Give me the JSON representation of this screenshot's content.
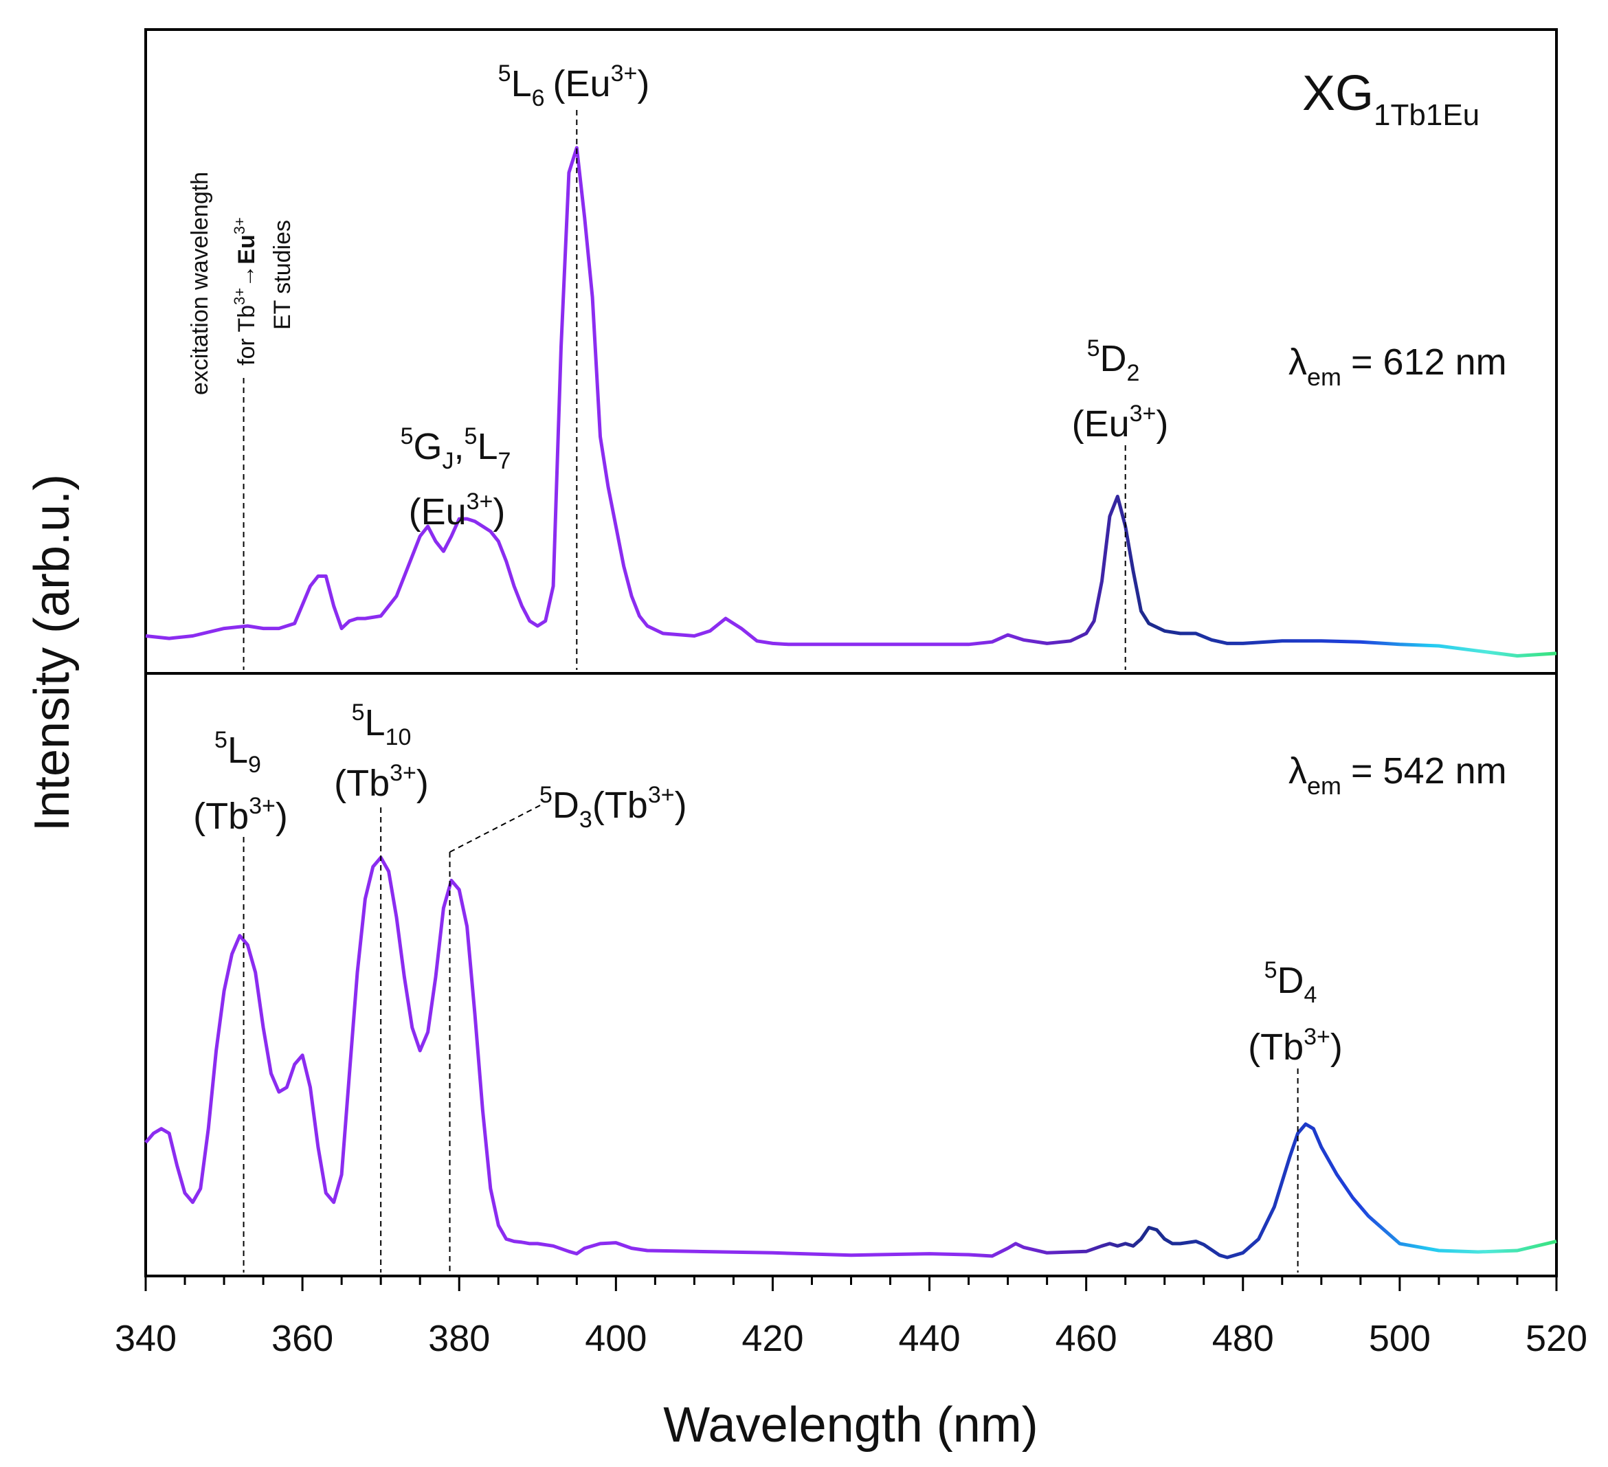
{
  "chart_data": {
    "type": "line",
    "xlabel": "Wavelength (nm)",
    "ylabel": "Intensity (arb.u.)",
    "xlim": [
      340,
      520
    ],
    "xticks": [
      340,
      360,
      380,
      400,
      420,
      440,
      460,
      480,
      500,
      520
    ],
    "xtick_labels": [
      "340",
      "360",
      "380",
      "400",
      "420",
      "440",
      "460",
      "480",
      "500",
      "520"
    ],
    "sample": {
      "main": "XG",
      "sub": "1Tb1Eu"
    },
    "colors": {
      "violet": "#8b2cf0",
      "indigo": "#5322b8",
      "navy": "#1c2a8c",
      "blue": "#1e40dc",
      "cyan": "#22c8f2",
      "aqua": "#4fe8dc",
      "green": "#38e27a",
      "axis": "#000000",
      "dash": "#000000"
    },
    "panels": [
      {
        "name": "top",
        "emission": {
          "symbol": "λ",
          "sub": "em",
          "text": "= 612 nm"
        },
        "ylim": [
          0,
          1.08
        ],
        "series": [
          {
            "name": "excitation spectrum λem = 612 nm",
            "x": [
              340,
              343,
              346,
              350,
              353,
              355,
              357,
              359,
              361,
              362,
              363,
              364,
              365,
              366,
              367,
              368,
              370,
              372,
              374,
              375,
              376,
              377,
              378,
              379,
              380,
              381,
              382,
              383,
              384,
              385,
              386,
              387,
              388,
              389,
              390,
              391,
              392,
              393,
              394,
              395,
              396,
              397,
              398,
              399,
              400,
              401,
              402,
              403,
              404,
              406,
              410,
              412,
              414,
              416,
              418,
              420,
              422,
              425,
              430,
              435,
              440,
              445,
              448,
              450,
              452,
              455,
              458,
              460,
              461,
              462,
              463,
              464,
              465,
              466,
              467,
              468,
              470,
              472,
              474,
              476,
              478,
              480,
              485,
              490,
              495,
              500,
              505,
              510,
              515,
              520
            ],
            "y": [
              0.02,
              0.015,
              0.02,
              0.035,
              0.04,
              0.035,
              0.035,
              0.045,
              0.12,
              0.14,
              0.14,
              0.08,
              0.035,
              0.05,
              0.055,
              0.055,
              0.06,
              0.1,
              0.18,
              0.22,
              0.24,
              0.21,
              0.19,
              0.22,
              0.255,
              0.255,
              0.25,
              0.24,
              0.23,
              0.21,
              0.17,
              0.12,
              0.08,
              0.05,
              0.04,
              0.05,
              0.12,
              0.6,
              0.95,
              1.0,
              0.86,
              0.7,
              0.42,
              0.32,
              0.24,
              0.16,
              0.1,
              0.06,
              0.04,
              0.025,
              0.02,
              0.03,
              0.055,
              0.035,
              0.01,
              0.005,
              0.003,
              0.003,
              0.003,
              0.003,
              0.003,
              0.003,
              0.008,
              0.022,
              0.012,
              0.005,
              0.01,
              0.025,
              0.05,
              0.13,
              0.26,
              0.3,
              0.24,
              0.15,
              0.07,
              0.045,
              0.03,
              0.025,
              0.025,
              0.012,
              0.005,
              0.005,
              0.01,
              0.01,
              0.008,
              0.003,
              0.0,
              -0.01,
              -0.02,
              -0.015
            ]
          }
        ],
        "annotations": [
          {
            "name": "5L6",
            "x": 395,
            "sup": "5",
            "base": "L",
            "sub": "6",
            "ion": "(Eu",
            "ion_sup": "3+",
            "ion_close": ")"
          },
          {
            "name": "5GJ-5L7",
            "x": 380,
            "line1": {
              "sup1": "5",
              "b1": "G",
              "sub1": "J",
              "sep": ",",
              "sup2": "5",
              "b2": "L",
              "sub2": "7"
            },
            "ion": "(Eu",
            "ion_sup": "3+",
            "ion_close": ")"
          },
          {
            "name": "5D2",
            "x": 465,
            "sup": "5",
            "base": "D",
            "sub": "2",
            "ion": "(Eu",
            "ion_sup": "3+",
            "ion_close": ")"
          },
          {
            "name": "excitation",
            "x": 352.5,
            "line1": "excitation wavelength",
            "line2_pre": "for Tb",
            "line2_sup1": "3+",
            "line2_arrow": "→",
            "line2_eu": "Eu",
            "line2_sup2": "3+",
            "line3": "ET studies"
          }
        ]
      },
      {
        "name": "bottom",
        "emission": {
          "symbol": "λ",
          "sub": "em",
          "text": "= 542 nm"
        },
        "ylim": [
          0,
          1.08
        ],
        "series": [
          {
            "name": "excitation spectrum λem = 542 nm",
            "x": [
              340,
              341,
              342,
              343,
              344,
              345,
              346,
              347,
              348,
              349,
              350,
              351,
              352,
              353,
              354,
              355,
              356,
              357,
              358,
              359,
              360,
              361,
              362,
              363,
              364,
              365,
              366,
              367,
              368,
              369,
              370,
              371,
              372,
              373,
              374,
              375,
              376,
              377,
              378,
              379,
              380,
              381,
              382,
              383,
              384,
              385,
              386,
              387,
              388,
              389,
              390,
              392,
              394,
              395,
              396,
              398,
              400,
              402,
              404,
              410,
              420,
              430,
              440,
              445,
              448,
              450,
              451,
              452,
              455,
              460,
              462,
              463,
              464,
              465,
              466,
              467,
              468,
              469,
              470,
              471,
              472,
              474,
              475,
              477,
              478,
              480,
              482,
              484,
              486,
              487,
              488,
              489,
              490,
              492,
              494,
              496,
              498,
              500,
              505,
              510,
              515,
              520
            ],
            "y": [
              0.25,
              0.27,
              0.28,
              0.27,
              0.2,
              0.14,
              0.12,
              0.15,
              0.28,
              0.45,
              0.58,
              0.66,
              0.7,
              0.68,
              0.62,
              0.5,
              0.4,
              0.36,
              0.37,
              0.42,
              0.44,
              0.37,
              0.24,
              0.14,
              0.12,
              0.18,
              0.4,
              0.62,
              0.78,
              0.85,
              0.87,
              0.84,
              0.74,
              0.61,
              0.5,
              0.45,
              0.49,
              0.61,
              0.76,
              0.82,
              0.8,
              0.72,
              0.53,
              0.32,
              0.15,
              0.07,
              0.04,
              0.035,
              0.033,
              0.03,
              0.03,
              0.025,
              0.013,
              0.008,
              0.02,
              0.03,
              0.032,
              0.02,
              0.015,
              0.013,
              0.01,
              0.005,
              0.008,
              0.006,
              0.003,
              0.02,
              0.03,
              0.022,
              0.01,
              0.013,
              0.025,
              0.03,
              0.025,
              0.03,
              0.025,
              0.04,
              0.065,
              0.06,
              0.04,
              0.03,
              0.03,
              0.035,
              0.028,
              0.005,
              0.0,
              0.01,
              0.04,
              0.11,
              0.22,
              0.27,
              0.29,
              0.28,
              0.24,
              0.18,
              0.13,
              0.09,
              0.06,
              0.03,
              0.015,
              0.012,
              0.015,
              0.035
            ]
          }
        ],
        "annotations": [
          {
            "name": "5L9",
            "x": 352.5,
            "sup": "5",
            "base": "L",
            "sub": "9",
            "ion": "(Tb",
            "ion_sup": "3+",
            "ion_close": ")"
          },
          {
            "name": "5L10",
            "x": 370,
            "sup": "5",
            "base": "L",
            "sub": "10",
            "ion": "(Tb",
            "ion_sup": "3+",
            "ion_close": ")"
          },
          {
            "name": "5D3",
            "x": 378.8,
            "sup": "5",
            "base": "D",
            "sub": "3",
            "ion": "(Tb",
            "ion_sup": "3+",
            "ion_close": ")"
          },
          {
            "name": "5D4",
            "x": 487,
            "sup": "5",
            "base": "D",
            "sub": "4",
            "ion": "(Tb",
            "ion_sup": "3+",
            "ion_close": ")"
          }
        ]
      }
    ]
  }
}
